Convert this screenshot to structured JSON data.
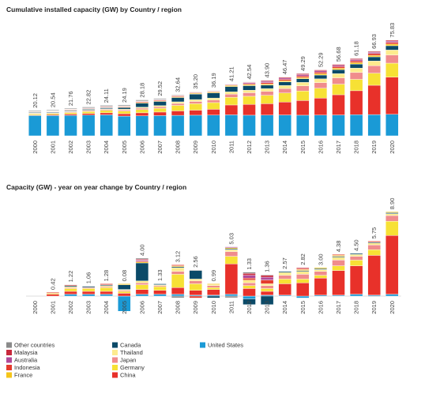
{
  "chart_data": [
    {
      "type": "bar",
      "stacked": true,
      "title": "Cumulative installed capacity (GW) by Country / region",
      "categories": [
        "2000",
        "2001",
        "2002",
        "2003",
        "2004",
        "2005",
        "2006",
        "2007",
        "2008",
        "2009",
        "2010",
        "2011",
        "2012",
        "2013",
        "2014",
        "2015",
        "2016",
        "2017",
        "2018",
        "2019",
        "2020"
      ],
      "totals": [
        20.12,
        20.54,
        21.76,
        22.82,
        24.11,
        24.19,
        28.18,
        29.52,
        32.64,
        35.2,
        36.19,
        41.21,
        42.54,
        43.9,
        46.47,
        49.29,
        52.29,
        56.68,
        61.18,
        66.93,
        75.83
      ],
      "total_labels": [
        "20.12",
        "20.54",
        "21.76",
        "22.82",
        "24.11",
        "24.19",
        "28.18",
        "29.52",
        "32.64",
        "35.20",
        "36.19",
        "41.21",
        "42.54",
        "43.90",
        "46.47",
        "49.29",
        "52.29",
        "56.68",
        "61.18",
        "66.93",
        "75.83"
      ],
      "series": [
        {
          "name": "United States",
          "color": "#1a9ad6",
          "values": [
            16,
            16,
            16.2,
            16.4,
            16.6,
            15.6,
            15.8,
            16,
            16.2,
            16.3,
            16.4,
            16.6,
            16.3,
            16.4,
            16.5,
            16.3,
            16.4,
            16.5,
            16.7,
            16.8,
            17
          ]
        },
        {
          "name": "China",
          "color": "#e8312a",
          "values": [
            0.5,
            0.7,
            1,
            1.3,
            1.6,
            1.9,
            2.4,
            2.8,
            3.5,
            4,
            4.6,
            7.8,
            8.6,
            9,
            10.2,
            11.6,
            13.4,
            16,
            19,
            23.2,
            29.4
          ]
        },
        {
          "name": "Germany",
          "color": "#f7e135",
          "values": [
            0.8,
            0.9,
            1.2,
            1.5,
            1.9,
            2.1,
            2.6,
            3,
            4.4,
            5.1,
            5.3,
            6.1,
            6.4,
            6.7,
            7.2,
            7.6,
            7.9,
            8.4,
            9,
            9.6,
            11.1
          ]
        },
        {
          "name": "Japan",
          "color": "#f08c8c",
          "values": [
            0.5,
            0.5,
            0.6,
            0.7,
            0.8,
            0.9,
            1.1,
            1.2,
            1.5,
            1.8,
            2,
            2.5,
            2.8,
            3.1,
            3.5,
            4,
            4.4,
            5,
            5.4,
            5.9,
            6.5
          ]
        },
        {
          "name": "Thailand",
          "color": "#fdeb8e",
          "values": [
            0.3,
            0.3,
            0.4,
            0.4,
            0.5,
            0.6,
            0.8,
            0.9,
            1.3,
            1.5,
            1.6,
            1.8,
            2,
            2.2,
            2.5,
            2.8,
            3,
            3.3,
            3.5,
            3.7,
            3.9
          ]
        },
        {
          "name": "Canada",
          "color": "#0b4a68",
          "values": [
            0.5,
            0.5,
            0.6,
            0.7,
            0.8,
            1.3,
            3.2,
            3.3,
            3.4,
            4.3,
            4.1,
            4.2,
            3.6,
            2.7,
            2.8,
            2.9,
            3,
            3.1,
            3.2,
            3.3,
            3.4
          ]
        },
        {
          "name": "France",
          "color": "#f5c518",
          "values": [
            0.3,
            0.3,
            0.3,
            0.3,
            0.3,
            0.4,
            0.5,
            0.5,
            0.6,
            0.6,
            0.7,
            0.8,
            0.9,
            0.9,
            0.9,
            1,
            1.1,
            1.2,
            1.2,
            1.2,
            1.3
          ]
        },
        {
          "name": "Indonesia",
          "color": "#e53b2c",
          "values": [
            0.2,
            0.3,
            0.4,
            0.4,
            0.5,
            0.5,
            0.6,
            0.6,
            0.7,
            0.5,
            0.5,
            0.5,
            0.7,
            1.1,
            1.1,
            1.2,
            1.2,
            1.3,
            1.3,
            1.4,
            1.4
          ]
        },
        {
          "name": "Australia",
          "color": "#b04a9a",
          "values": [
            0.2,
            0.2,
            0.2,
            0.2,
            0.2,
            0.2,
            0.3,
            0.3,
            0.3,
            0.3,
            0.3,
            0.4,
            0.7,
            1,
            1,
            1,
            1,
            1,
            1,
            1,
            1
          ]
        },
        {
          "name": "Malaysia",
          "color": "#c8283c",
          "values": [
            0.2,
            0.2,
            0.2,
            0.2,
            0.2,
            0.2,
            0.3,
            0.3,
            0.3,
            0.3,
            0.3,
            0.3,
            0.5,
            0.7,
            0.7,
            0.8,
            0.8,
            0.8,
            0.8,
            0.8,
            0.8
          ]
        },
        {
          "name": "Other countries",
          "color": "#8a8a8a",
          "values": [
            0.6,
            0.6,
            0.6,
            0.7,
            0.7,
            0.7,
            0.8,
            0.7,
            0.4,
            0.3,
            0.3,
            0.2,
            0.3,
            0.3,
            0.3,
            0.2,
            0.2,
            0.2,
            0.2,
            0.1,
            0.1
          ]
        }
      ]
    },
    {
      "type": "bar",
      "stacked": true,
      "title": "Capacity (GW) - year on year change by Country / region",
      "categories": [
        "2000",
        "2001",
        "2002",
        "2003",
        "2004",
        "2005",
        "2006",
        "2007",
        "2008",
        "2009",
        "2010",
        "2011",
        "2012",
        "2013",
        "2014",
        "2015",
        "2016",
        "2017",
        "2018",
        "2019",
        "2020"
      ],
      "totals": [
        null,
        0.42,
        1.22,
        1.06,
        1.28,
        0.08,
        4.0,
        1.33,
        3.12,
        2.56,
        0.99,
        5.03,
        1.33,
        1.36,
        2.57,
        2.82,
        3.0,
        4.38,
        4.5,
        5.75,
        8.9
      ],
      "total_labels": [
        null,
        "0.42",
        "1.22",
        "1.06",
        "1.28",
        "0.08",
        "4.00",
        "1.33",
        "3.12",
        "2.56",
        "0.99",
        "5.03",
        "1.33",
        "1.36",
        "2.57",
        "2.82",
        "3.00",
        "4.38",
        "4.50",
        "5.75",
        "8.90"
      ],
      "series": [
        {
          "values": [
            null,
            0,
            0.2,
            0.2,
            0.2,
            -1.6,
            0.2,
            0.2,
            0.2,
            0.1,
            0.1,
            0.2,
            -0.3,
            0.1,
            0.1,
            -0.2,
            0.1,
            0.1,
            0.2,
            0.1,
            0.2
          ]
        },
        {
          "values": [
            null,
            0.2,
            0.3,
            0.3,
            0.3,
            0.3,
            0.5,
            0.4,
            0.7,
            0.5,
            0.6,
            3.2,
            0.8,
            0.4,
            1.2,
            1.4,
            1.8,
            2.6,
            3,
            4.2,
            6.2
          ]
        },
        {
          "values": [
            null,
            0.1,
            0.3,
            0.3,
            0.4,
            0.2,
            0.5,
            0.4,
            1.4,
            0.7,
            0.2,
            0.8,
            0.3,
            0.3,
            0.5,
            0.4,
            0.3,
            0.5,
            0.6,
            0.6,
            1.5
          ]
        },
        {
          "values": [
            null,
            0,
            0.1,
            0.1,
            0.1,
            0.1,
            0.2,
            0.1,
            0.3,
            0.3,
            0.2,
            0.5,
            0.3,
            0.3,
            0.4,
            0.5,
            0.4,
            0.6,
            0.4,
            0.5,
            0.6
          ]
        },
        {
          "values": [
            null,
            0,
            0.1,
            0,
            0.1,
            0.1,
            0.2,
            0.1,
            0.4,
            0.2,
            0.1,
            0.2,
            0.2,
            0.2,
            0.3,
            0.3,
            0.2,
            0.3,
            0.2,
            0.2,
            0.2
          ]
        },
        {
          "values": [
            null,
            0,
            0.1,
            0.1,
            0.1,
            0.5,
            1.9,
            0.1,
            0.1,
            0.9,
            -0.2,
            0.1,
            -0.6,
            -0.9,
            0.1,
            0.1,
            0.1,
            0.1,
            0.1,
            0.1,
            0.1
          ]
        },
        {
          "values": [
            null,
            0,
            0,
            0,
            0,
            0.1,
            0.1,
            0,
            0.1,
            0,
            0.1,
            0.1,
            0.1,
            0,
            0,
            0.1,
            0.1,
            0.1,
            0,
            0,
            0.1
          ]
        },
        {
          "values": [
            null,
            0.1,
            0.1,
            0,
            0.1,
            0,
            0.1,
            0,
            0.1,
            -0.2,
            0,
            0,
            0.2,
            0.4,
            0,
            0.1,
            0,
            0.1,
            0,
            0.1,
            0
          ]
        },
        {
          "values": [
            null,
            0,
            0,
            0,
            0,
            0,
            0.1,
            0,
            0,
            0,
            0,
            0.1,
            0.3,
            0.3,
            0,
            0,
            0,
            0,
            0,
            0,
            0
          ]
        },
        {
          "values": [
            null,
            0,
            0,
            0,
            0,
            0,
            0.1,
            0,
            0,
            0,
            0,
            0,
            0.2,
            0.2,
            0,
            0.1,
            0,
            0,
            0,
            0,
            0
          ]
        },
        {
          "values": [
            null,
            0.02,
            0.02,
            0.06,
            -0.02,
            -0.02,
            0.1,
            0.03,
            -0.18,
            0.06,
            -0.01,
            -0.17,
            0.13,
            0.06,
            -0.03,
            0.02,
            0,
            -0.02,
            0,
            -0.05,
            0
          ]
        }
      ]
    }
  ]
}
